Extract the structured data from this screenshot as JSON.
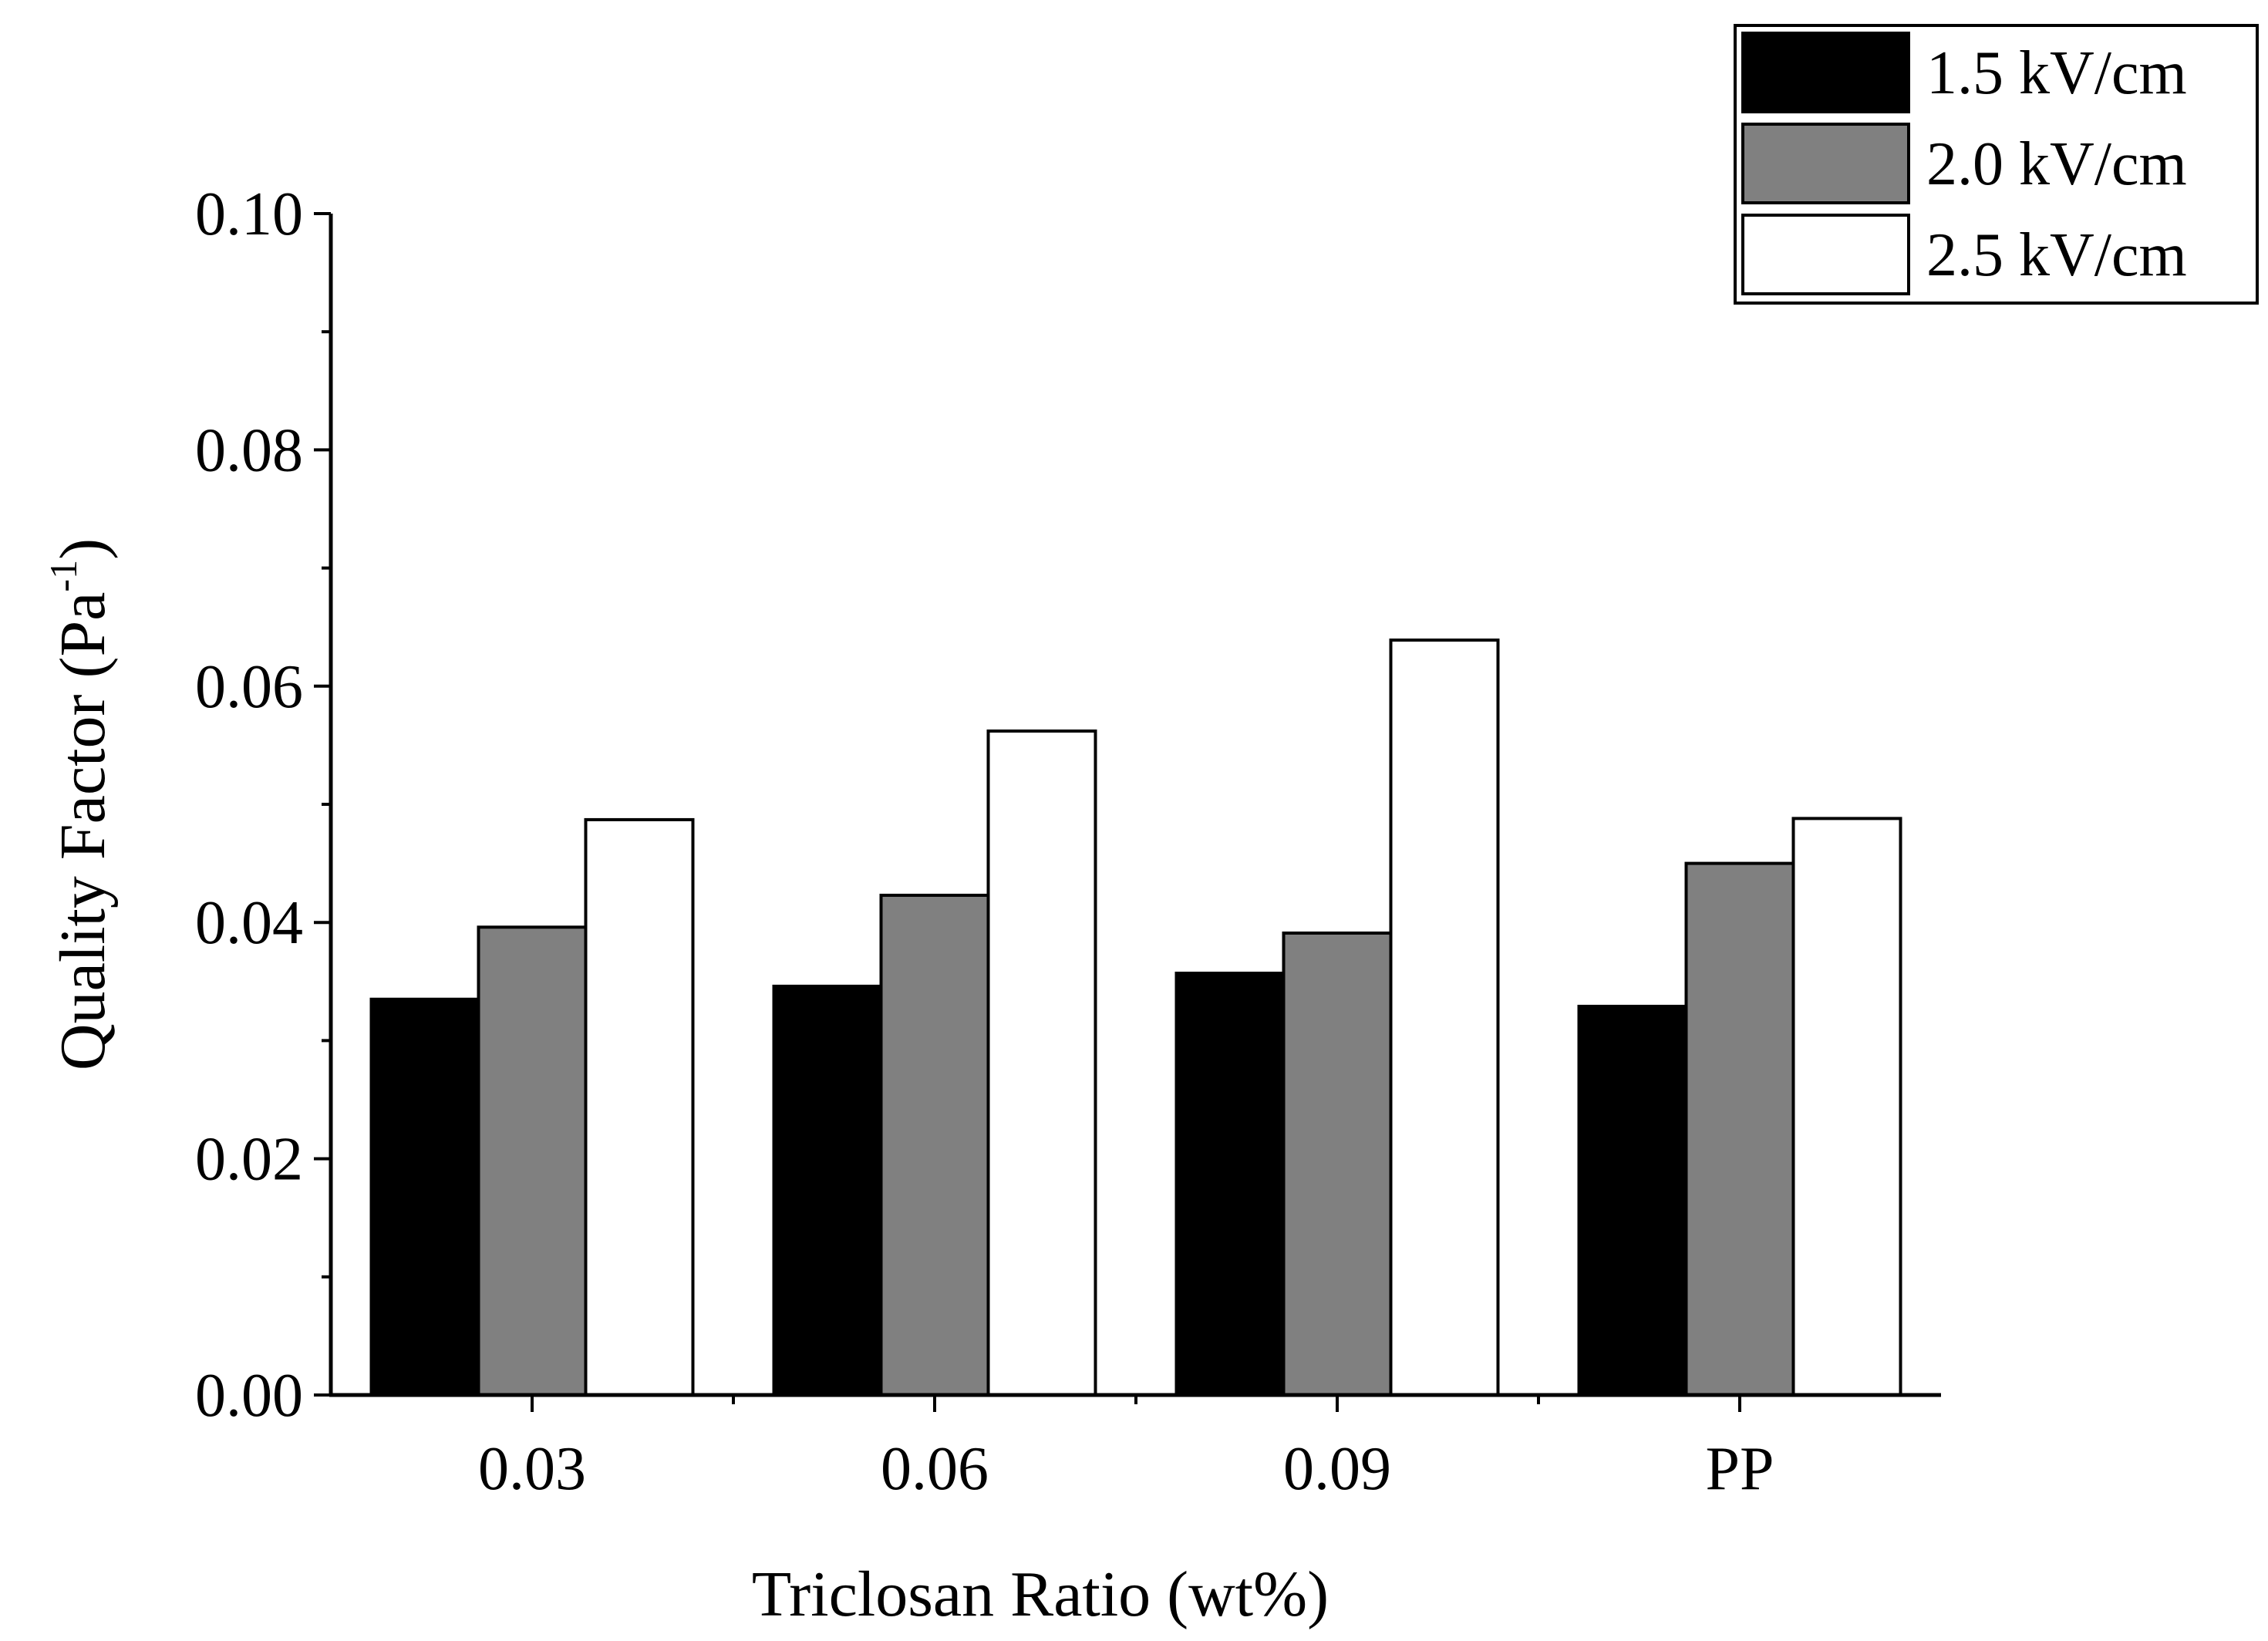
{
  "chart_data": {
    "type": "bar",
    "title": "",
    "xlabel": "Triclosan Ratio (wt%)",
    "ylabel": "Quality Factor (Pa",
    "ylabel_sup": "-1",
    "ylabel_close": ")",
    "categories": [
      "0.03",
      "0.06",
      "0.09",
      "PP"
    ],
    "series": [
      {
        "name": "1.5 kV/cm",
        "color": "#000000",
        "values": [
          0.0335,
          0.0346,
          0.0357,
          0.0329
        ]
      },
      {
        "name": "2.0 kV/cm",
        "color": "#808080",
        "values": [
          0.0396,
          0.0423,
          0.0391,
          0.045
        ]
      },
      {
        "name": "2.5 kV/cm",
        "color": "#ffffff",
        "values": [
          0.0487,
          0.0562,
          0.0639,
          0.0488
        ]
      }
    ],
    "ylim": [
      0,
      0.1
    ],
    "yticks": [
      "0.00",
      "0.02",
      "0.04",
      "0.06",
      "0.08",
      "0.10"
    ],
    "grid": false,
    "legend_position": "top-right"
  }
}
